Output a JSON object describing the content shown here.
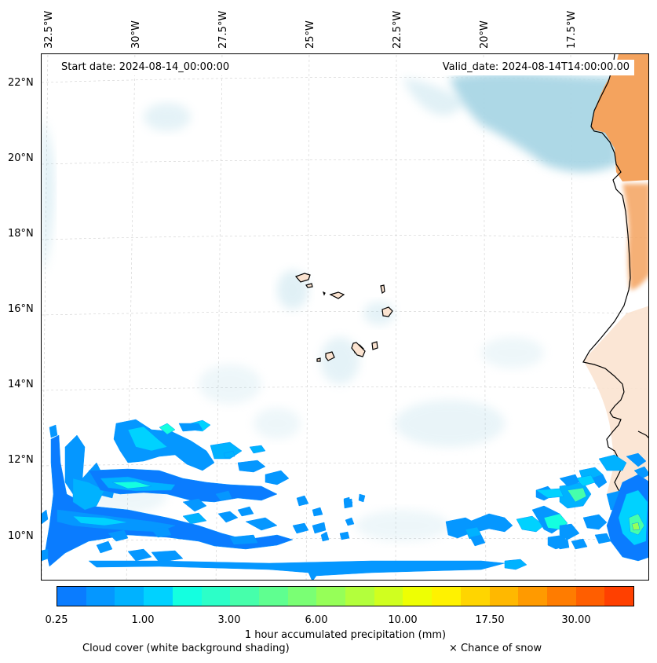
{
  "map": {
    "start_date": "Start date: 2024-08-14_00:00:00",
    "valid_date": "Valid_date: 2024-08-14T14:00:00.00",
    "lon_labels": [
      "32.5°W",
      "30°W",
      "27.5°W",
      "25°W",
      "22.5°W",
      "20°W",
      "17.5°W"
    ],
    "lat_labels": [
      "22°N",
      "20°N",
      "18°N",
      "16°N",
      "14°N",
      "12°N",
      "10°N"
    ],
    "land_color": "#f4a35e",
    "cloud_color": "#a9d6e5",
    "coast_color": "#000000"
  },
  "colorbar": {
    "colors": [
      "#0a7cff",
      "#0597ff",
      "#00b2ff",
      "#00d2ff",
      "#14ffe0",
      "#2cffc8",
      "#46ffab",
      "#5fff90",
      "#7aff74",
      "#96ff58",
      "#b3ff3c",
      "#d0ff1f",
      "#eeff03",
      "#fff200",
      "#ffd500",
      "#ffb800",
      "#ff9a00",
      "#ff7c00",
      "#ff5e00",
      "#ff4000"
    ],
    "tick_labels": [
      "0.25",
      "1.00",
      "3.00",
      "6.00",
      "10.00",
      "17.50",
      "30.00"
    ],
    "label": "1 hour accumulated precipitation (mm)"
  },
  "legend": {
    "cloud": "Cloud cover (white background shading)",
    "snow": "× Chance of snow"
  }
}
